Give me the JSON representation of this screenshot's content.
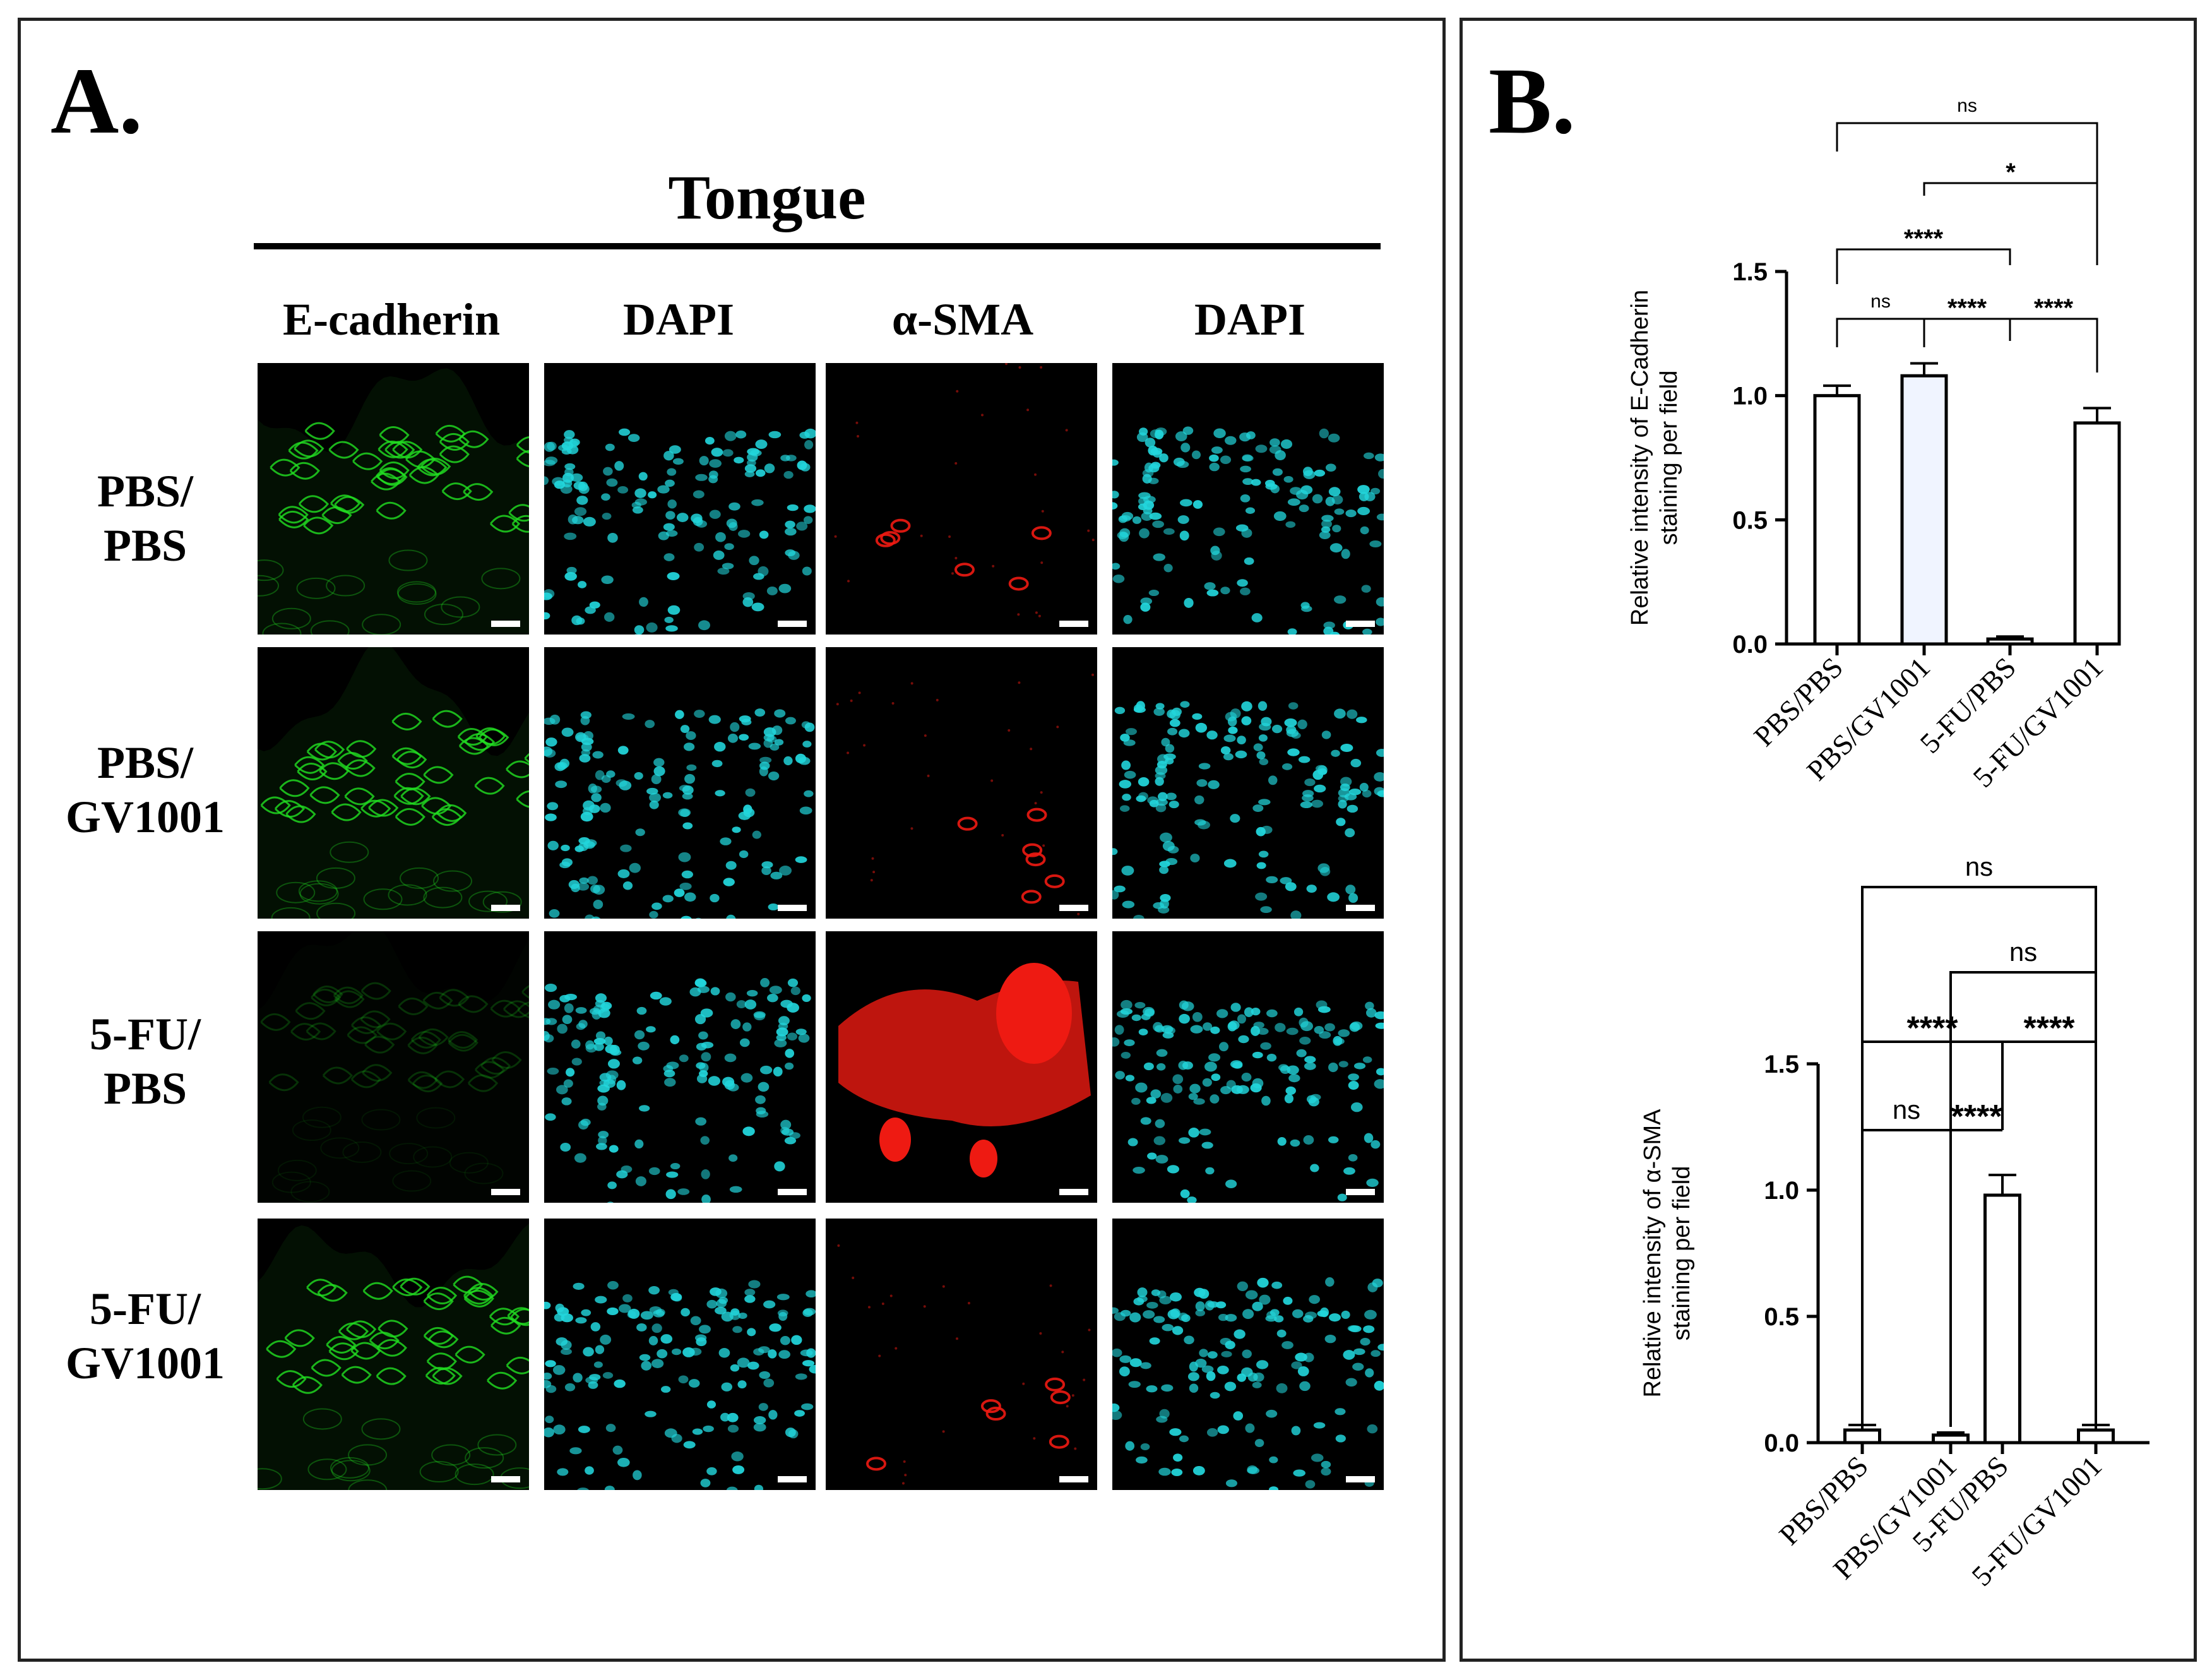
{
  "panel_a": {
    "letter": "A.",
    "title": "Tongue",
    "columns": [
      "E-cadherin",
      "DAPI",
      "α-SMA",
      "DAPI"
    ],
    "rows": [
      {
        "line1": "PBS/",
        "line2": "PBS"
      },
      {
        "line1": "PBS/",
        "line2": "GV1001"
      },
      {
        "line1": "5-FU/",
        "line2": "PBS"
      },
      {
        "line1": "5-FU/",
        "line2": "GV1001"
      }
    ],
    "colors": {
      "ecadherin": "#22dd22",
      "dapi": "#22d6dc",
      "sma": "#ee1a12"
    },
    "sma_level": [
      0.06,
      0.08,
      0.9,
      0.12
    ],
    "ecad_level": [
      0.95,
      0.95,
      0.25,
      0.95
    ]
  },
  "panel_b": {
    "letter": "B."
  },
  "chart_data": [
    {
      "type": "bar",
      "ylabel_line1": "Relative intensity of E-Cadherin",
      "ylabel_line2": "staining per field",
      "categories": [
        "PBS/PBS",
        "PBS/GV1001",
        "5-FU/PBS",
        "5-FU/GV1001"
      ],
      "values": [
        1.0,
        1.08,
        0.02,
        0.89
      ],
      "errors": [
        0.04,
        0.05,
        0.01,
        0.06
      ],
      "bar_fills": [
        "#ffffff",
        "#f0f4ff",
        "#ffffff",
        "#ffffff"
      ],
      "ylim": [
        0,
        1.5
      ],
      "yticks": [
        "0.0",
        "0.5",
        "1.0",
        "1.5"
      ],
      "significance": [
        {
          "from": 0,
          "to": 1,
          "label": "ns"
        },
        {
          "from": 1,
          "to": 2,
          "label": "****"
        },
        {
          "from": 2,
          "to": 3,
          "label": "****"
        },
        {
          "from": 0,
          "to": 2,
          "label": "****"
        },
        {
          "from": 1,
          "to": 3,
          "label": "*"
        },
        {
          "from": 0,
          "to": 3,
          "label": "ns"
        }
      ]
    },
    {
      "type": "bar",
      "ylabel_line1": "Relative intensity of α-SMA",
      "ylabel_line2": "staining per field",
      "categories": [
        "PBS/PBS",
        "PBS/GV1001",
        "5-FU/PBS",
        "5-FU/GV1001"
      ],
      "values": [
        0.05,
        0.03,
        0.98,
        0.05
      ],
      "errors": [
        0.02,
        0.01,
        0.08,
        0.02
      ],
      "bar_fills": [
        "#ffffff",
        "#ffffff",
        "#ffffff",
        "#ffffff"
      ],
      "ylim": [
        0,
        1.5
      ],
      "yticks": [
        "0.0",
        "0.5",
        "1.0",
        "1.5"
      ],
      "significance": [
        {
          "from": 0,
          "to": 1,
          "label": "ns"
        },
        {
          "from": 1,
          "to": 2,
          "label": "****"
        },
        {
          "from": 0,
          "to": 2,
          "label": "****"
        },
        {
          "from": 2,
          "to": 3,
          "label": "****"
        },
        {
          "from": 1,
          "to": 3,
          "label": "ns"
        },
        {
          "from": 0,
          "to": 3,
          "label": "ns"
        }
      ]
    }
  ]
}
